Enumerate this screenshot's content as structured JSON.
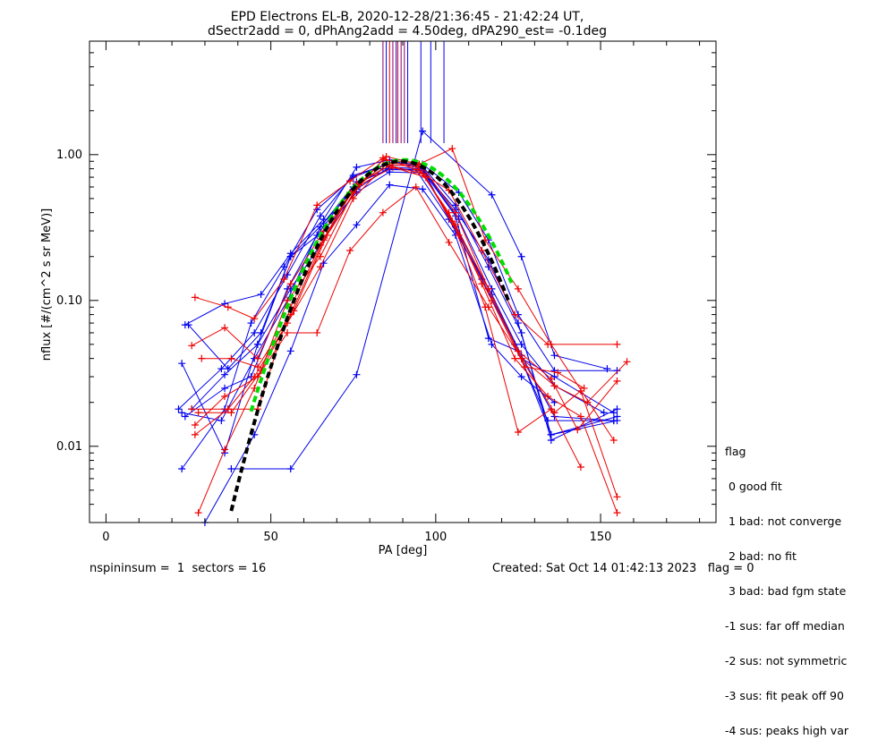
{
  "chart_data": {
    "type": "scatter",
    "title_line1": "EPD Electrons EL-B, 2020-12-28/21:36:45 - 21:42:24 UT,",
    "title_line2": "dSectr2add = 0, dPhAng2add = 4.50deg, dPA290_est=  -0.1deg",
    "xlabel": "PA [deg]",
    "ylabel": "nflux [#/(cm^2 s sr MeV)]",
    "xlim": [
      -5,
      185
    ],
    "ylim": [
      0.003,
      6.0
    ],
    "yscale": "log",
    "x_ticks": [
      0,
      50,
      100,
      150
    ],
    "x_tick_labels": [
      "0",
      "50",
      "100",
      "150"
    ],
    "y_ticks": [
      0.01,
      0.1,
      1.0
    ],
    "y_tick_labels": [
      "0.01",
      "0.10",
      "1.00"
    ],
    "colors": {
      "blue": "#0000ee",
      "red": "#ee0000",
      "green": "#00dd00",
      "black": "#000000",
      "purple": "#880066"
    },
    "peak_markers": [
      {
        "x": 84.0,
        "color": "#880066"
      },
      {
        "x": 85.0,
        "color": "#0000ee"
      },
      {
        "x": 86.0,
        "color": "#ee0000"
      },
      {
        "x": 87.0,
        "color": "#880066"
      },
      {
        "x": 88.0,
        "color": "#0000ee"
      },
      {
        "x": 88.5,
        "color": "#ee0000"
      },
      {
        "x": 89.5,
        "color": "#880066"
      },
      {
        "x": 90.5,
        "color": "#880066"
      },
      {
        "x": 91.5,
        "color": "#0000ee"
      },
      {
        "x": 95.5,
        "color": "#0000ee"
      },
      {
        "x": 98.5,
        "color": "#0000ee"
      },
      {
        "x": 102.5,
        "color": "#0000ee"
      }
    ],
    "series": [
      {
        "color": "#0000ee",
        "points": [
          [
            23,
            0.007
          ],
          [
            36,
            0.018
          ],
          [
            44,
            0.07
          ],
          [
            54,
            0.17
          ],
          [
            64,
            0.42
          ],
          [
            75,
            0.7
          ],
          [
            86,
            0.88
          ],
          [
            96,
            0.86
          ],
          [
            107,
            0.55
          ],
          [
            116,
            0.26
          ],
          [
            125,
            0.08
          ],
          [
            136,
            0.033
          ],
          [
            155,
            0.033
          ]
        ]
      },
      {
        "color": "#0000ee",
        "points": [
          [
            24,
            0.068
          ],
          [
            36,
            0.095
          ],
          [
            47,
            0.11
          ],
          [
            56,
            0.21
          ],
          [
            66,
            0.36
          ],
          [
            76,
            0.82
          ],
          [
            86,
            0.92
          ],
          [
            96,
            0.8
          ],
          [
            107,
            0.36
          ],
          [
            117,
            0.12
          ],
          [
            126,
            0.05
          ],
          [
            136,
            0.026
          ],
          [
            151,
            0.017
          ]
        ]
      },
      {
        "color": "#0000ee",
        "points": [
          [
            23,
            0.017
          ],
          [
            35,
            0.015
          ],
          [
            45,
            0.04
          ],
          [
            55,
            0.1
          ],
          [
            65,
            0.32
          ],
          [
            76,
            0.65
          ],
          [
            86,
            0.79
          ],
          [
            96,
            0.78
          ],
          [
            106,
            0.42
          ],
          [
            116,
            0.19
          ],
          [
            125,
            0.07
          ],
          [
            135,
            0.012
          ],
          [
            155,
            0.016
          ]
        ]
      },
      {
        "color": "#0000ee",
        "points": [
          [
            23,
            0.037
          ],
          [
            36,
            0.009
          ],
          [
            46,
            0.05
          ],
          [
            56,
            0.2
          ],
          [
            66,
            0.3
          ],
          [
            76,
            0.55
          ],
          [
            86,
            0.76
          ],
          [
            96,
            0.75
          ],
          [
            106,
            0.32
          ],
          [
            117,
            0.11
          ],
          [
            126,
            0.042
          ],
          [
            136,
            0.016
          ],
          [
            154,
            0.015
          ]
        ]
      },
      {
        "color": "#0000ee",
        "points": [
          [
            22,
            0.018
          ],
          [
            35,
            0.034
          ],
          [
            45,
            0.06
          ],
          [
            55,
            0.15
          ],
          [
            65,
            0.38
          ],
          [
            75,
            0.72
          ],
          [
            85,
            0.85
          ],
          [
            96,
            0.83
          ],
          [
            106,
            0.45
          ],
          [
            116,
            0.17
          ],
          [
            126,
            0.06
          ],
          [
            135,
            0.011
          ],
          [
            155,
            0.018
          ]
        ]
      },
      {
        "color": "#0000ee",
        "points": [
          [
            38,
            0.007
          ],
          [
            56,
            0.007
          ],
          [
            76,
            0.031
          ],
          [
            96,
            1.45
          ],
          [
            117,
            0.53
          ],
          [
            126,
            0.2
          ],
          [
            136,
            0.042
          ],
          [
            152,
            0.034
          ]
        ]
      },
      {
        "color": "#0000ee",
        "points": [
          [
            25,
            0.068
          ],
          [
            37,
            0.034
          ],
          [
            47,
            0.06
          ],
          [
            56,
            0.2
          ],
          [
            66,
            0.34
          ],
          [
            77,
            0.65
          ],
          [
            86,
            0.8
          ],
          [
            96,
            0.78
          ],
          [
            106,
            0.38
          ],
          [
            116,
            0.055
          ],
          [
            125,
            0.045
          ],
          [
            135,
            0.012
          ],
          [
            155,
            0.015
          ]
        ]
      },
      {
        "color": "#0000ee",
        "points": [
          [
            26,
            0.018
          ],
          [
            36,
            0.031
          ],
          [
            46,
            0.05
          ],
          [
            56,
            0.12
          ],
          [
            66,
            0.26
          ],
          [
            76,
            0.58
          ],
          [
            86,
            0.82
          ],
          [
            96,
            0.8
          ],
          [
            106,
            0.3
          ],
          [
            117,
            0.11
          ],
          [
            126,
            0.04
          ],
          [
            136,
            0.03
          ],
          [
            154,
            0.017
          ]
        ]
      },
      {
        "color": "#0000ee",
        "points": [
          [
            24,
            0.016
          ],
          [
            36,
            0.025
          ],
          [
            44,
            0.03
          ],
          [
            55,
            0.12
          ],
          [
            64,
            0.28
          ],
          [
            75,
            0.6
          ],
          [
            84,
            0.8
          ],
          [
            94,
            0.79
          ],
          [
            104,
            0.36
          ],
          [
            114,
            0.14
          ],
          [
            124,
            0.05
          ],
          [
            134,
            0.015
          ],
          [
            154,
            0.015
          ]
        ]
      },
      {
        "color": "#0000ee",
        "points": [
          [
            30,
            0.003
          ],
          [
            45,
            0.012
          ],
          [
            56,
            0.045
          ],
          [
            66,
            0.18
          ],
          [
            76,
            0.33
          ],
          [
            86,
            0.62
          ],
          [
            96,
            0.58
          ],
          [
            106,
            0.28
          ],
          [
            117,
            0.05
          ],
          [
            126,
            0.03
          ],
          [
            136,
            0.02
          ]
        ]
      },
      {
        "color": "#ee0000",
        "points": [
          [
            27,
            0.105
          ],
          [
            37,
            0.09
          ],
          [
            45,
            0.075
          ],
          [
            54,
            0.14
          ],
          [
            64,
            0.45
          ],
          [
            74,
            0.66
          ],
          [
            84,
            0.95
          ],
          [
            94,
            0.79
          ],
          [
            104,
            0.57
          ],
          [
            114,
            0.22
          ],
          [
            124,
            0.08
          ],
          [
            134,
            0.05
          ],
          [
            155,
            0.05
          ]
        ]
      },
      {
        "color": "#ee0000",
        "points": [
          [
            26,
            0.049
          ],
          [
            36,
            0.065
          ],
          [
            46,
            0.04
          ],
          [
            56,
            0.13
          ],
          [
            66,
            0.3
          ],
          [
            76,
            0.6
          ],
          [
            85,
            0.97
          ],
          [
            95,
            0.86
          ],
          [
            105,
            1.1
          ],
          [
            115,
            0.26
          ],
          [
            125,
            0.12
          ],
          [
            135,
            0.05
          ],
          [
            154,
            0.011
          ]
        ]
      },
      {
        "color": "#ee0000",
        "points": [
          [
            27,
            0.012
          ],
          [
            37,
            0.018
          ],
          [
            46,
            0.018
          ],
          [
            56,
            0.09
          ],
          [
            65,
            0.24
          ],
          [
            74,
            0.55
          ],
          [
            85,
            0.88
          ],
          [
            94,
            0.85
          ],
          [
            104,
            0.4
          ],
          [
            114,
            0.13
          ],
          [
            124,
            0.04
          ],
          [
            134,
            0.022
          ],
          [
            144,
            0.016
          ],
          [
            155,
            0.0035
          ]
        ]
      },
      {
        "color": "#ee0000",
        "points": [
          [
            28,
            0.0035
          ],
          [
            36,
            0.0095
          ],
          [
            45,
            0.025
          ],
          [
            55,
            0.1
          ],
          [
            65,
            0.2
          ],
          [
            75,
            0.55
          ],
          [
            84,
            0.92
          ],
          [
            94,
            0.88
          ],
          [
            105,
            0.35
          ],
          [
            115,
            0.09
          ],
          [
            125,
            0.0125
          ],
          [
            135,
            0.018
          ],
          [
            144,
            0.0072
          ]
        ]
      },
      {
        "color": "#ee0000",
        "points": [
          [
            26,
            0.018
          ],
          [
            37,
            0.018
          ],
          [
            45,
            0.03
          ],
          [
            55,
            0.07
          ],
          [
            65,
            0.17
          ],
          [
            75,
            0.5
          ],
          [
            85,
            0.86
          ],
          [
            96,
            0.82
          ],
          [
            106,
            0.4
          ],
          [
            116,
            0.12
          ],
          [
            126,
            0.04
          ],
          [
            136,
            0.017
          ],
          [
            144,
            0.024
          ],
          [
            155,
            0.0045
          ]
        ]
      },
      {
        "color": "#ee0000",
        "points": [
          [
            27,
            0.014
          ],
          [
            36,
            0.022
          ],
          [
            46,
            0.03
          ],
          [
            55,
            0.06
          ],
          [
            64,
            0.06
          ],
          [
            74,
            0.22
          ],
          [
            84,
            0.4
          ],
          [
            94,
            0.6
          ],
          [
            104,
            0.25
          ],
          [
            116,
            0.09
          ],
          [
            126,
            0.04
          ],
          [
            136,
            0.026
          ],
          [
            146,
            0.02
          ],
          [
            158,
            0.038
          ]
        ]
      },
      {
        "color": "#ee0000",
        "points": [
          [
            29,
            0.04
          ],
          [
            38,
            0.04
          ],
          [
            46,
            0.035
          ],
          [
            56,
            0.08
          ],
          [
            66,
            0.26
          ],
          [
            76,
            0.63
          ],
          [
            86,
            0.84
          ],
          [
            96,
            0.74
          ],
          [
            106,
            0.33
          ],
          [
            116,
            0.12
          ],
          [
            125,
            0.045
          ],
          [
            135,
            0.029
          ],
          [
            143,
            0.013
          ],
          [
            155,
            0.028
          ]
        ]
      },
      {
        "color": "#ee0000",
        "points": [
          [
            28,
            0.017
          ],
          [
            38,
            0.017
          ],
          [
            47,
            0.033
          ],
          [
            57,
            0.085
          ],
          [
            67,
            0.28
          ],
          [
            77,
            0.62
          ],
          [
            87,
            0.82
          ],
          [
            97,
            0.7
          ],
          [
            107,
            0.28
          ],
          [
            117,
            0.1
          ],
          [
            127,
            0.035
          ],
          [
            137,
            0.032
          ],
          [
            145,
            0.025
          ]
        ]
      }
    ],
    "fit_curves": [
      {
        "color": "#00dd00",
        "style": "dashed-thick",
        "x_range": [
          44,
          123
        ],
        "center": 90.5,
        "peak": 0.92,
        "sigma": 16.5
      },
      {
        "color": "#000000",
        "style": "dashed-thick",
        "x_range": [
          38,
          122
        ],
        "center": 89.5,
        "peak": 0.9,
        "sigma": 15.5
      }
    ]
  },
  "legend": {
    "title": "flag",
    "items": [
      " 0 good fit",
      " 1 bad: not converge",
      " 2 bad: no fit",
      " 3 bad: bad fgm state",
      "-1 sus: far off median",
      "-2 sus: not symmetric",
      "-3 sus: fit peak off 90",
      "-4 sus: peaks high var"
    ]
  },
  "footer": {
    "left": "nspininsum =  1  sectors = 16",
    "right": "Created: Sat Oct 14 01:42:13 2023   flag = 0"
  }
}
